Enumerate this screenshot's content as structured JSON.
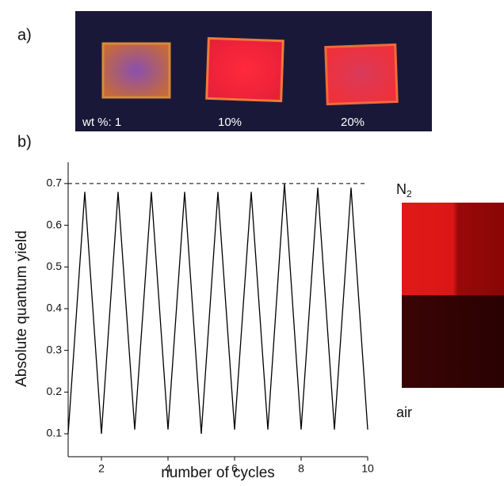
{
  "panel_a": {
    "label": "a)",
    "sample_labels": [
      "wt %:  1",
      "10%",
      "20%"
    ]
  },
  "panel_b": {
    "label": "b)",
    "n2_label": "N",
    "n2_subscript": "2",
    "air_label": "air"
  },
  "chart_data": {
    "type": "line",
    "x_label": "number of cycles",
    "y_label": "Absolute quantum yield",
    "x": [
      1,
      1.5,
      2,
      2.5,
      3,
      3.5,
      4,
      4.5,
      5,
      5.5,
      6,
      6.5,
      7,
      7.5,
      8,
      8.5,
      9,
      9.5,
      10
    ],
    "series": [
      {
        "color": "#000000",
        "values": [
          0.1,
          0.68,
          0.1,
          0.68,
          0.11,
          0.68,
          0.11,
          0.68,
          0.1,
          0.68,
          0.11,
          0.68,
          0.11,
          0.7,
          0.11,
          0.69,
          0.11,
          0.69,
          0.11
        ]
      }
    ],
    "xlim": [
      1,
      10
    ],
    "xticks": [
      2,
      4,
      6,
      8,
      10
    ],
    "ylim": [
      0.045,
      0.751
    ],
    "yticks": [
      0.1,
      0.2,
      0.3,
      0.4,
      0.5,
      0.6,
      0.7
    ],
    "reference_line": 0.7
  }
}
